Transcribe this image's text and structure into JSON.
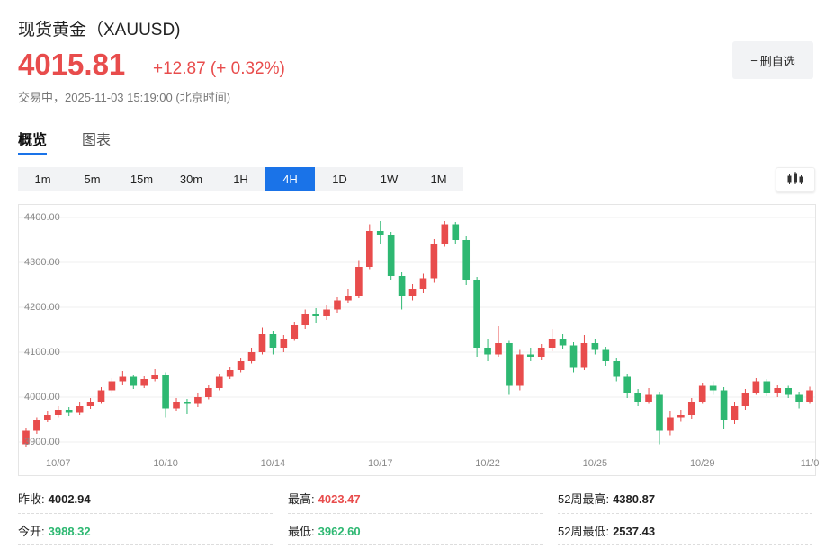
{
  "header": {
    "title": "现货黄金（XAUUSD)",
    "price": "4015.81",
    "change": "+12.87 (+ 0.32%)",
    "status": "交易中，2025-11-03 15:19:00 (北京时间)",
    "watch_button": "删自选"
  },
  "tabs": [
    "概览",
    "图表"
  ],
  "intervals": [
    "1m",
    "5m",
    "15m",
    "30m",
    "1H",
    "4H",
    "1D",
    "1W",
    "1M"
  ],
  "active_interval": "4H",
  "chart_data": {
    "type": "candlestick",
    "up_color": "#e84c4c",
    "down_color": "#2eb872",
    "grid": true,
    "ylim": [
      3872,
      4428
    ],
    "yticks": [
      {
        "value": 3900,
        "label": "3900.00"
      },
      {
        "value": 4000,
        "label": "4000.00"
      },
      {
        "value": 4100,
        "label": "4100.00"
      },
      {
        "value": 4200,
        "label": "4200.00"
      },
      {
        "value": 4300,
        "label": "4300.00"
      },
      {
        "value": 4400,
        "label": "4400.00"
      }
    ],
    "categories": [
      null,
      null,
      null,
      "10/07",
      null,
      null,
      null,
      null,
      null,
      null,
      null,
      null,
      null,
      "10/10",
      null,
      null,
      null,
      null,
      null,
      null,
      null,
      null,
      null,
      "10/14",
      null,
      null,
      null,
      null,
      null,
      null,
      null,
      null,
      null,
      "10/17",
      null,
      null,
      null,
      null,
      null,
      null,
      null,
      null,
      null,
      "10/22",
      null,
      null,
      null,
      null,
      null,
      null,
      null,
      null,
      null,
      "10/25",
      null,
      null,
      null,
      null,
      null,
      null,
      null,
      null,
      null,
      "10/29",
      null,
      null,
      null,
      null,
      null,
      null,
      null,
      null,
      null,
      "11/0"
    ],
    "candles": [
      [
        3895,
        3932,
        3888,
        3925
      ],
      [
        3925,
        3955,
        3918,
        3950
      ],
      [
        3950,
        3968,
        3944,
        3960
      ],
      [
        3960,
        3980,
        3955,
        3972
      ],
      [
        3972,
        3978,
        3958,
        3965
      ],
      [
        3965,
        3988,
        3960,
        3980
      ],
      [
        3980,
        3998,
        3974,
        3990
      ],
      [
        3990,
        4022,
        3985,
        4015
      ],
      [
        4015,
        4042,
        4010,
        4035
      ],
      [
        4035,
        4058,
        4028,
        4045
      ],
      [
        4045,
        4050,
        4018,
        4025
      ],
      [
        4025,
        4046,
        4020,
        4040
      ],
      [
        4040,
        4062,
        4035,
        4050
      ],
      [
        4050,
        4055,
        3955,
        3975
      ],
      [
        3975,
        3998,
        3968,
        3990
      ],
      [
        3990,
        3996,
        3962,
        3985
      ],
      [
        3985,
        4008,
        3978,
        4000
      ],
      [
        4000,
        4028,
        3995,
        4020
      ],
      [
        4020,
        4052,
        4015,
        4045
      ],
      [
        4045,
        4068,
        4040,
        4060
      ],
      [
        4060,
        4088,
        4055,
        4080
      ],
      [
        4080,
        4110,
        4075,
        4100
      ],
      [
        4100,
        4155,
        4095,
        4140
      ],
      [
        4140,
        4148,
        4095,
        4110
      ],
      [
        4110,
        4138,
        4100,
        4130
      ],
      [
        4130,
        4168,
        4125,
        4160
      ],
      [
        4160,
        4195,
        4152,
        4185
      ],
      [
        4185,
        4198,
        4165,
        4180
      ],
      [
        4180,
        4205,
        4172,
        4195
      ],
      [
        4195,
        4222,
        4188,
        4215
      ],
      [
        4215,
        4240,
        4210,
        4225
      ],
      [
        4225,
        4305,
        4220,
        4290
      ],
      [
        4290,
        4385,
        4285,
        4370
      ],
      [
        4370,
        4392,
        4340,
        4360
      ],
      [
        4360,
        4368,
        4260,
        4270
      ],
      [
        4270,
        4278,
        4195,
        4225
      ],
      [
        4225,
        4252,
        4215,
        4240
      ],
      [
        4240,
        4275,
        4232,
        4265
      ],
      [
        4265,
        4352,
        4255,
        4340
      ],
      [
        4340,
        4392,
        4335,
        4385
      ],
      [
        4385,
        4390,
        4340,
        4350
      ],
      [
        4350,
        4358,
        4250,
        4260
      ],
      [
        4260,
        4268,
        4090,
        4110
      ],
      [
        4110,
        4130,
        4080,
        4095
      ],
      [
        4095,
        4158,
        4090,
        4120
      ],
      [
        4120,
        4125,
        4005,
        4025
      ],
      [
        4025,
        4105,
        4015,
        4095
      ],
      [
        4095,
        4110,
        4080,
        4090
      ],
      [
        4090,
        4118,
        4082,
        4110
      ],
      [
        4110,
        4152,
        4102,
        4130
      ],
      [
        4130,
        4140,
        4108,
        4115
      ],
      [
        4115,
        4122,
        4055,
        4065
      ],
      [
        4065,
        4138,
        4060,
        4120
      ],
      [
        4120,
        4130,
        4095,
        4105
      ],
      [
        4105,
        4112,
        4070,
        4080
      ],
      [
        4080,
        4088,
        4035,
        4045
      ],
      [
        4045,
        4052,
        3998,
        4010
      ],
      [
        4010,
        4018,
        3980,
        3990
      ],
      [
        3990,
        4020,
        3985,
        4005
      ],
      [
        4005,
        4012,
        3895,
        3925
      ],
      [
        3925,
        3968,
        3915,
        3955
      ],
      [
        3955,
        3972,
        3945,
        3960
      ],
      [
        3960,
        3998,
        3952,
        3990
      ],
      [
        3990,
        4032,
        3985,
        4025
      ],
      [
        4025,
        4035,
        4005,
        4015
      ],
      [
        4015,
        4022,
        3930,
        3950
      ],
      [
        3950,
        3988,
        3940,
        3980
      ],
      [
        3980,
        4018,
        3972,
        4010
      ],
      [
        4010,
        4042,
        4005,
        4035
      ],
      [
        4035,
        4040,
        4002,
        4010
      ],
      [
        4010,
        4028,
        4000,
        4020
      ],
      [
        4020,
        4025,
        3998,
        4005
      ],
      [
        4005,
        4012,
        3975,
        3990
      ],
      [
        3990,
        4023,
        3985,
        4015
      ]
    ]
  },
  "stats": [
    {
      "label": "昨收:",
      "value": "4002.94",
      "color": "#222222"
    },
    {
      "label": "最高:",
      "value": "4023.47",
      "color": "#e84c4c"
    },
    {
      "label": "52周最高:",
      "value": "4380.87",
      "color": "#222222"
    },
    {
      "label": "今开:",
      "value": "3988.32",
      "color": "#2eb872"
    },
    {
      "label": "最低:",
      "value": "3962.60",
      "color": "#2eb872"
    },
    {
      "label": "52周最低:",
      "value": "2537.43",
      "color": "#222222"
    }
  ]
}
